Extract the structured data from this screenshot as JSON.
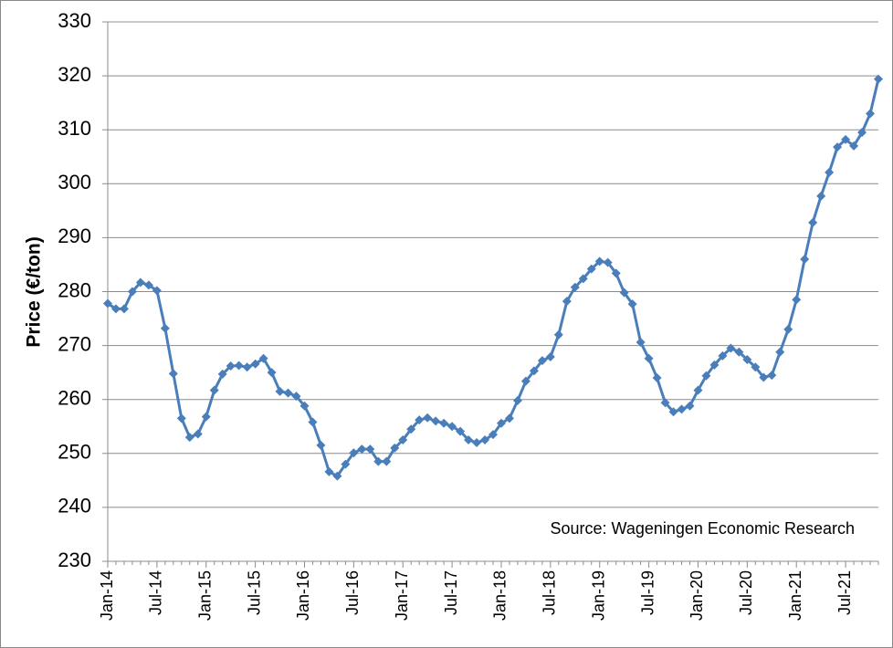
{
  "chart_data": {
    "type": "line",
    "y_label": "Price (€/ton)",
    "annotation": "Source: Wageningen Economic Research",
    "categories": [
      "Jan-14",
      null,
      null,
      null,
      null,
      null,
      "Jul-14",
      null,
      null,
      null,
      null,
      null,
      "Jan-15",
      null,
      null,
      null,
      null,
      null,
      "Jul-15",
      null,
      null,
      null,
      null,
      null,
      "Jan-16",
      null,
      null,
      null,
      null,
      null,
      "Jul-16",
      null,
      null,
      null,
      null,
      null,
      "Jan-17",
      null,
      null,
      null,
      null,
      null,
      "Jul-17",
      null,
      null,
      null,
      null,
      null,
      "Jan-18",
      null,
      null,
      null,
      null,
      null,
      "Jul-18",
      null,
      null,
      null,
      null,
      null,
      "Jan-19",
      null,
      null,
      null,
      null,
      null,
      "Jul-19",
      null,
      null,
      null,
      null,
      null,
      "Jan-20",
      null,
      null,
      null,
      null,
      null,
      "Jul-20",
      null,
      null,
      null,
      null,
      null,
      "Jan-21",
      null,
      null,
      null,
      null,
      null,
      "Jul-21",
      null,
      null,
      null,
      null
    ],
    "series": [
      {
        "name": "Price",
        "color": "#4a7ebb",
        "values": [
          277.8,
          276.8,
          276.8,
          280,
          281.7,
          281.2,
          280.2,
          273.2,
          264.8,
          256.5,
          253,
          253.6,
          256.8,
          261.7,
          264.7,
          266.2,
          266.3,
          266,
          266.6,
          267.6,
          265,
          261.5,
          261.2,
          260.6,
          258.8,
          255.8,
          251.5,
          246.6,
          245.8,
          248,
          250.1,
          250.8,
          250.8,
          248.5,
          248.5,
          251,
          252.5,
          254.5,
          256.2,
          256.6,
          256,
          255.6,
          255,
          254.1,
          252.5,
          252,
          252.5,
          253.5,
          255.6,
          256.5,
          259.8,
          263.4,
          265.3,
          267.2,
          267.9,
          272,
          278.2,
          280.8,
          282.4,
          284.2,
          285.6,
          285.4,
          283.4,
          279.8,
          277.7,
          270.6,
          267.6,
          264,
          259.4,
          257.7,
          258.2,
          258.8,
          261.7,
          264.4,
          266.4,
          268.1,
          269.5,
          268.8,
          267.4,
          266,
          264.1,
          264.5,
          268.8,
          273,
          278.5,
          286,
          292.8,
          297.7,
          302.1,
          306.8,
          308.2,
          307,
          309.5,
          313,
          319.4
        ]
      }
    ],
    "ylim": [
      230,
      330
    ],
    "yticks": [
      230,
      240,
      250,
      260,
      270,
      280,
      290,
      300,
      310,
      320,
      330
    ],
    "grid": true
  }
}
